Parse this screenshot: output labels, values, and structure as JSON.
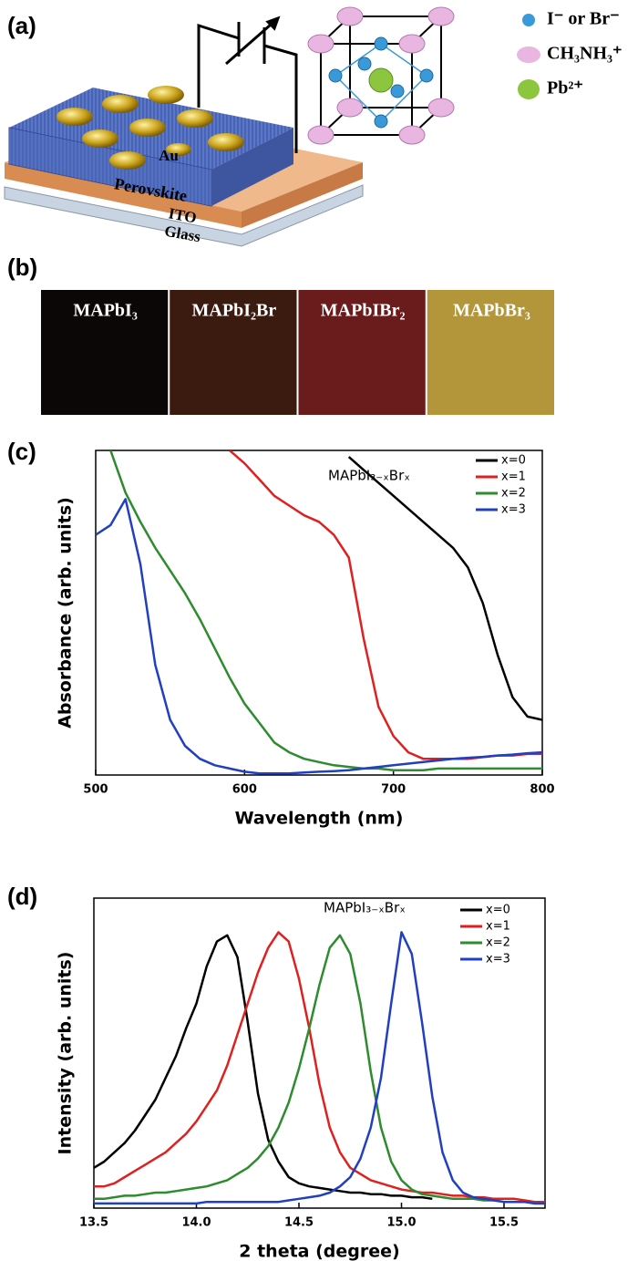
{
  "figure": {
    "panel_a": {
      "label": "(a)",
      "layers": [
        "Au",
        "Perovskite",
        "ITO",
        "Glass"
      ],
      "legend": [
        {
          "text": "I⁻ or Br⁻",
          "color": "#3a9ad9"
        },
        {
          "text": "CH₃NH₃⁺",
          "color": "#e8b6e0"
        },
        {
          "text": "Pb²⁺",
          "color": "#8cc63f"
        }
      ]
    },
    "panel_b": {
      "label": "(b)",
      "samples": [
        {
          "name": "MAPbI₃",
          "color": "#0b0707"
        },
        {
          "name": "MAPbI₂Br",
          "color": "#3b1a10"
        },
        {
          "name": "MAPbIBr₂",
          "color": "#6a1c1c"
        },
        {
          "name": "MAPbBr₃",
          "color": "#b3953a"
        }
      ]
    }
  },
  "chart_data": [
    {
      "type": "line",
      "panel_label": "(c)",
      "annotation": "MAPbI₃₋ₓBrₓ",
      "x_label": "Wavelength (nm)",
      "y_label": "Absorbance (arb. units)",
      "x": [
        500,
        510,
        520,
        530,
        540,
        550,
        560,
        570,
        580,
        590,
        600,
        610,
        620,
        630,
        640,
        650,
        660,
        670,
        680,
        690,
        700,
        710,
        720,
        730,
        740,
        750,
        760,
        770,
        780,
        790,
        800
      ],
      "xlim": [
        500,
        800
      ],
      "xticks": [
        500,
        600,
        700,
        800
      ],
      "ylim": [
        0,
        1
      ],
      "legend": "upper right",
      "series": [
        {
          "name": "x=0",
          "color": "#000000",
          "values": [
            null,
            null,
            null,
            null,
            null,
            null,
            null,
            null,
            null,
            null,
            null,
            null,
            null,
            null,
            null,
            null,
            null,
            0.98,
            0.94,
            0.9,
            0.86,
            0.82,
            0.78,
            0.74,
            0.7,
            0.64,
            0.53,
            0.37,
            0.24,
            0.18,
            0.17
          ]
        },
        {
          "name": "x=1",
          "color": "#e02020",
          "values": [
            null,
            null,
            null,
            null,
            null,
            null,
            null,
            null,
            null,
            1.0,
            0.96,
            0.91,
            0.86,
            0.83,
            0.8,
            0.78,
            0.74,
            0.67,
            0.42,
            0.21,
            0.12,
            0.07,
            0.05,
            0.05,
            0.05,
            0.05,
            0.055,
            0.06,
            0.06,
            0.065,
            0.065
          ]
        },
        {
          "name": "x=2",
          "color": "#2e8b2e",
          "values": [
            null,
            1.0,
            0.87,
            0.78,
            0.7,
            0.63,
            0.56,
            0.48,
            0.39,
            0.3,
            0.22,
            0.16,
            0.1,
            0.07,
            0.05,
            0.04,
            0.03,
            0.025,
            0.02,
            0.02,
            0.015,
            0.015,
            0.015,
            0.02,
            0.02,
            0.02,
            0.02,
            0.02,
            0.02,
            0.02,
            0.02
          ]
        },
        {
          "name": "x=3",
          "color": "#2040c0",
          "values": [
            0.74,
            0.77,
            0.85,
            0.65,
            0.34,
            0.17,
            0.09,
            0.05,
            0.03,
            0.02,
            0.01,
            0.005,
            0.005,
            0.005,
            0.008,
            0.01,
            0.012,
            0.015,
            0.02,
            0.025,
            0.03,
            0.035,
            0.04,
            0.045,
            0.05,
            0.053,
            0.056,
            0.06,
            0.063,
            0.067,
            0.07
          ]
        }
      ]
    },
    {
      "type": "line",
      "panel_label": "(d)",
      "annotation": "MAPbI₃₋ₓBrₓ",
      "x_label": "2 theta (degree)",
      "y_label": "Intensity (arb. units)",
      "x": [
        13.5,
        13.55,
        13.6,
        13.65,
        13.7,
        13.75,
        13.8,
        13.85,
        13.9,
        13.95,
        14.0,
        14.05,
        14.1,
        14.15,
        14.2,
        14.25,
        14.3,
        14.35,
        14.4,
        14.45,
        14.5,
        14.55,
        14.6,
        14.65,
        14.7,
        14.75,
        14.8,
        14.85,
        14.9,
        14.95,
        15.0,
        15.05,
        15.1,
        15.15,
        15.2,
        15.25,
        15.3,
        15.35,
        15.4,
        15.45,
        15.5,
        15.55,
        15.6,
        15.65,
        15.7
      ],
      "xlim": [
        13.5,
        15.7
      ],
      "xticks": [
        13.5,
        {
          "value": 14,
          "label": "14.0"
        },
        14.5,
        {
          "value": 15,
          "label": "15.0"
        },
        15.5
      ],
      "ylim": [
        0,
        1
      ],
      "legend": "upper right",
      "series": [
        {
          "name": "x=0",
          "color": "#000000",
          "values": [
            0.13,
            0.15,
            0.18,
            0.21,
            0.25,
            0.3,
            0.35,
            0.42,
            0.49,
            0.58,
            0.66,
            0.78,
            0.86,
            0.88,
            0.81,
            0.6,
            0.37,
            0.22,
            0.15,
            0.1,
            0.08,
            0.07,
            0.065,
            0.06,
            0.055,
            0.05,
            0.05,
            0.045,
            0.045,
            0.04,
            0.04,
            0.035,
            0.035,
            0.03,
            null,
            null,
            null,
            null,
            null,
            null,
            null,
            null,
            null,
            null,
            null
          ]
        },
        {
          "name": "x=1",
          "color": "#e02020",
          "values": [
            0.07,
            0.07,
            0.08,
            0.1,
            0.12,
            0.14,
            0.16,
            0.18,
            0.21,
            0.24,
            0.28,
            0.33,
            0.38,
            0.46,
            0.56,
            0.66,
            0.76,
            0.84,
            0.89,
            0.86,
            0.74,
            0.58,
            0.4,
            0.26,
            0.18,
            0.13,
            0.11,
            0.09,
            0.08,
            0.07,
            0.06,
            0.055,
            0.05,
            0.05,
            0.045,
            0.04,
            0.04,
            0.035,
            0.035,
            0.03,
            0.03,
            0.03,
            0.025,
            0.02,
            0.02
          ]
        },
        {
          "name": "x=2",
          "color": "#2e8b2e",
          "values": [
            0.03,
            0.03,
            0.035,
            0.04,
            0.04,
            0.045,
            0.05,
            0.05,
            0.055,
            0.06,
            0.065,
            0.07,
            0.08,
            0.09,
            0.11,
            0.13,
            0.16,
            0.2,
            0.26,
            0.34,
            0.45,
            0.58,
            0.72,
            0.84,
            0.88,
            0.82,
            0.66,
            0.44,
            0.26,
            0.15,
            0.09,
            0.06,
            0.045,
            0.04,
            0.035,
            0.03,
            0.03,
            0.03,
            0.025,
            0.025,
            0.02,
            0.02,
            0.02,
            0.015,
            0.015
          ]
        },
        {
          "name": "x=3",
          "color": "#2040c0",
          "values": [
            0.015,
            0.015,
            0.015,
            0.015,
            0.015,
            0.015,
            0.015,
            0.015,
            0.015,
            0.015,
            0.015,
            0.02,
            0.02,
            0.02,
            0.02,
            0.02,
            0.02,
            0.02,
            0.02,
            0.025,
            0.03,
            0.035,
            0.04,
            0.05,
            0.07,
            0.1,
            0.16,
            0.26,
            0.42,
            0.66,
            0.89,
            0.82,
            0.6,
            0.36,
            0.18,
            0.09,
            0.05,
            0.035,
            0.03,
            0.025,
            0.02,
            0.02,
            0.02,
            0.015,
            0.015
          ]
        }
      ]
    }
  ]
}
